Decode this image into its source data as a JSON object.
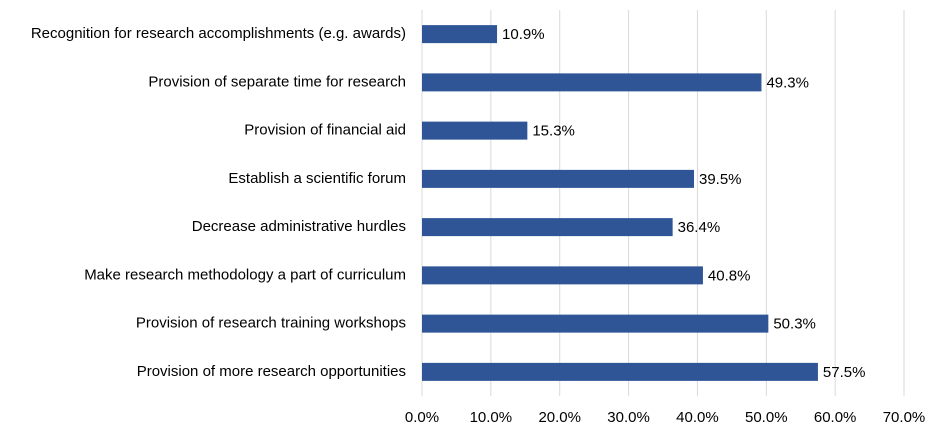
{
  "chart_data": {
    "type": "hbar",
    "categories": [
      "Recognition for research accomplishments (e.g. awards)",
      "Provision of separate time for research",
      "Provision of financial aid",
      "Establish a scientific forum",
      "Decrease administrative hurdles",
      "Make research methodology a part of curriculum",
      "Provision of research training workshops",
      "Provision of more research opportunities"
    ],
    "values": [
      10.9,
      49.3,
      15.3,
      39.5,
      36.4,
      40.8,
      50.3,
      57.5
    ],
    "value_labels": [
      "10.9%",
      "49.3%",
      "15.3%",
      "39.5%",
      "36.4%",
      "40.8%",
      "50.3%",
      "57.5%"
    ],
    "color": "#2f5597",
    "xlim": [
      0,
      70
    ],
    "xticks": [
      {
        "value": 0,
        "label": "0.0%"
      },
      {
        "value": 10,
        "label": "10.0%"
      },
      {
        "value": 20,
        "label": "20.0%"
      },
      {
        "value": 30,
        "label": "30.0%"
      },
      {
        "value": 40,
        "label": "40.0%"
      },
      {
        "value": 50,
        "label": "50.0%"
      },
      {
        "value": 60,
        "label": "60.0%"
      },
      {
        "value": 70,
        "label": "70.0%"
      }
    ],
    "grid": true
  }
}
